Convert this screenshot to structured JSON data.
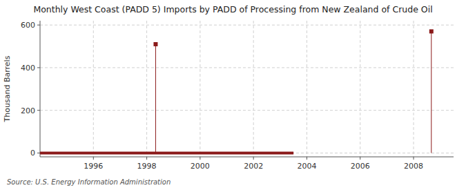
{
  "chart_data": {
    "type": "line",
    "title": "Monthly West Coast (PADD 5) Imports by PADD of Processing from New Zealand of Crude Oil",
    "y_label": "Thousand Barrels",
    "source": "Source: U.S. Energy Information Administration",
    "xlim": [
      1994.0,
      2009.5
    ],
    "ylim": [
      -18,
      620
    ],
    "xticks": [
      1996,
      1998,
      2000,
      2002,
      2004,
      2006,
      2008
    ],
    "yticks": [
      0,
      200,
      400,
      600
    ],
    "grid": true,
    "series": [
      {
        "type": "line",
        "color": "#8B1A1A",
        "x": [
          1994.0,
          2003.5
        ],
        "values": [
          0,
          0
        ]
      },
      {
        "type": "stem",
        "color": "#8B1A1A",
        "marker": "square",
        "x": [
          1998.333,
          2008.667
        ],
        "values": [
          510,
          570
        ]
      }
    ]
  }
}
